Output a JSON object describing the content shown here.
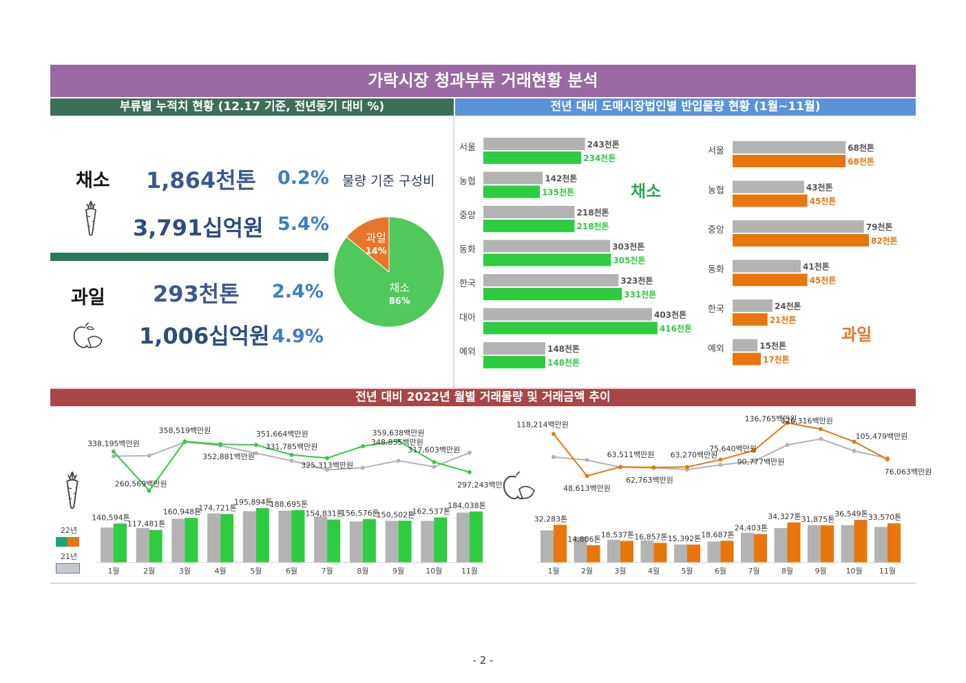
{
  "main_title": "가락시장 청과부류 거래현황 분석",
  "left_header": "부류별 누적치 현황 (12.17 기준, 전년동기 대비 %)",
  "right_header": "전년 대비 도매시장법인별 반입물량 현황 (1월~11월)",
  "bottom_header": "전년 대비 2022년 월별 거래물량 및 거래금액  추이",
  "summary": {
    "veg": {
      "label": "채소",
      "volume": "1,864천톤",
      "volume_pct": "0.2%",
      "amount": "3,791십억원",
      "amount_pct": "5.4%"
    },
    "fruit": {
      "label": "과일",
      "volume": "293천톤",
      "volume_pct": "2.4%",
      "amount": "1,006십억원",
      "amount_pct": "4.9%"
    }
  },
  "pie_title": "물량 기준 구성비",
  "legend": {
    "y22": "22년",
    "y21": "21년"
  },
  "colors": {
    "veg_green": "#2ecc40",
    "fruit_orange": "#e8760c",
    "prev_gray": "#b3b3b3",
    "pie_green": "#4fc95a",
    "pie_orange": "#e8762a"
  },
  "icons": [
    "carrot-icon",
    "apple-icon"
  ],
  "page_number": "- 2 -",
  "chart_data": [
    {
      "type": "pie",
      "title": "물량 기준 구성비",
      "slices": [
        {
          "name": "채소",
          "label": "86%",
          "value": 86
        },
        {
          "name": "과일",
          "label": "14%",
          "value": 14
        }
      ]
    },
    {
      "type": "bar",
      "title": "채소",
      "categories": [
        "서울",
        "농협",
        "중앙",
        "동화",
        "한국",
        "대아",
        "예외"
      ],
      "series": [
        {
          "values": [
            243,
            142,
            218,
            303,
            323,
            403,
            148
          ],
          "labels": [
            "243천톤",
            "142천톤",
            "218천톤",
            "303천톤",
            "323천톤",
            "403천톤",
            "148천톤"
          ]
        },
        {
          "values": [
            234,
            135,
            218,
            305,
            331,
            416,
            148
          ],
          "labels": [
            "234천톤",
            "135천톤",
            "218천톤",
            "305천톤",
            "331천톤",
            "416천톤",
            "148천톤"
          ]
        }
      ]
    },
    {
      "type": "bar",
      "title": "과일",
      "categories": [
        "서울",
        "농협",
        "중앙",
        "동화",
        "한국",
        "예외"
      ],
      "series": [
        {
          "values": [
            68,
            43,
            79,
            41,
            24,
            15
          ],
          "labels": [
            "68천톤",
            "43천톤",
            "79천톤",
            "41천톤",
            "24천톤",
            "15천톤"
          ]
        },
        {
          "values": [
            68,
            45,
            82,
            45,
            21,
            17
          ],
          "labels": [
            "68천톤",
            "45천톤",
            "82천톤",
            "45천톤",
            "21천톤",
            "17천톤"
          ]
        }
      ]
    },
    {
      "type": "bar",
      "group": "veg",
      "categories": [
        "1월",
        "2월",
        "3월",
        "4월",
        "5월",
        "6월",
        "7월",
        "8월",
        "9월",
        "10월",
        "11월"
      ],
      "series": [
        {
          "name": "21년",
          "values": [
            126000,
            124000,
            158000,
            177000,
            185000,
            187000,
            166000,
            148000,
            150000,
            150000,
            180000
          ]
        },
        {
          "name": "22년",
          "values": [
            140594,
            117481,
            160948,
            174721,
            195894,
            188695,
            154831,
            156576,
            150502,
            162537,
            184038
          ],
          "labels": [
            "140,594톤",
            "117,481톤",
            "160,948톤",
            "174,721톤",
            "195,894톤",
            "188,695톤",
            "154,831톤",
            "156,576톤",
            "150,502톤",
            "162,537톤",
            "184,038톤"
          ]
        }
      ]
    },
    {
      "type": "line",
      "group": "veg",
      "categories": [
        "1월",
        "2월",
        "3월",
        "4월",
        "5월",
        "6월",
        "7월",
        "8월",
        "9월",
        "10월",
        "11월"
      ],
      "series": [
        {
          "name": "21년",
          "values": [
            329000,
            330000,
            357000,
            350000,
            335000,
            320000,
            302000,
            306000,
            320000,
            308000,
            336000
          ]
        },
        {
          "name": "22년",
          "values": [
            338195,
            260569,
            358519,
            352881,
            351664,
            331785,
            325313,
            348855,
            359638,
            317603,
            297243
          ],
          "labels": [
            "338,195백만원",
            "260,569백만원",
            "358,519백만원",
            "352,881백만원",
            "351,664백만원",
            "331,785백만원",
            "325,313백만원",
            "348,855백만원",
            "359,638백만원",
            "317,603백만원",
            "297,243백만원"
          ]
        }
      ]
    },
    {
      "type": "bar",
      "group": "fruit",
      "categories": [
        "1월",
        "2월",
        "3월",
        "4월",
        "5월",
        "6월",
        "7월",
        "8월",
        "9월",
        "10월",
        "11월"
      ],
      "series": [
        {
          "name": "21년",
          "values": [
            27500,
            22000,
            19500,
            19000,
            15500,
            18000,
            25500,
            29500,
            32000,
            32000,
            30500
          ]
        },
        {
          "name": "22년",
          "values": [
            32283,
            14806,
            18537,
            16857,
            15392,
            18687,
            24403,
            34327,
            31875,
            36549,
            33570
          ],
          "labels": [
            "32,283톤",
            "14,806톤",
            "18,537톤",
            "16,857톤",
            "15,392톤",
            "18,687톤",
            "24,403톤",
            "34,327톤",
            "31,875톤",
            "36,549톤",
            "33,570톤"
          ]
        }
      ]
    },
    {
      "type": "line",
      "group": "fruit",
      "categories": [
        "1월",
        "2월",
        "3월",
        "4월",
        "5월",
        "6월",
        "7월",
        "8월",
        "9월",
        "10월",
        "11월"
      ],
      "series": [
        {
          "name": "21년",
          "values": [
            80000,
            75000,
            63000,
            62000,
            59000,
            67000,
            73000,
            100000,
            110000,
            90000,
            78000
          ]
        },
        {
          "name": "22년",
          "values": [
            118214,
            48613,
            63511,
            62763,
            63270,
            75640,
            90777,
            136765,
            126316,
            105479,
            76063
          ],
          "labels": [
            "118,214백만원",
            "48,613백만원",
            "63,511백만원",
            "62,763백만원",
            "63,270백만원",
            "75,640백만원",
            "90,777백만원",
            "136,765백만원",
            "126,316백만원",
            "105,479백만원",
            "76,063백만원"
          ]
        }
      ]
    }
  ]
}
